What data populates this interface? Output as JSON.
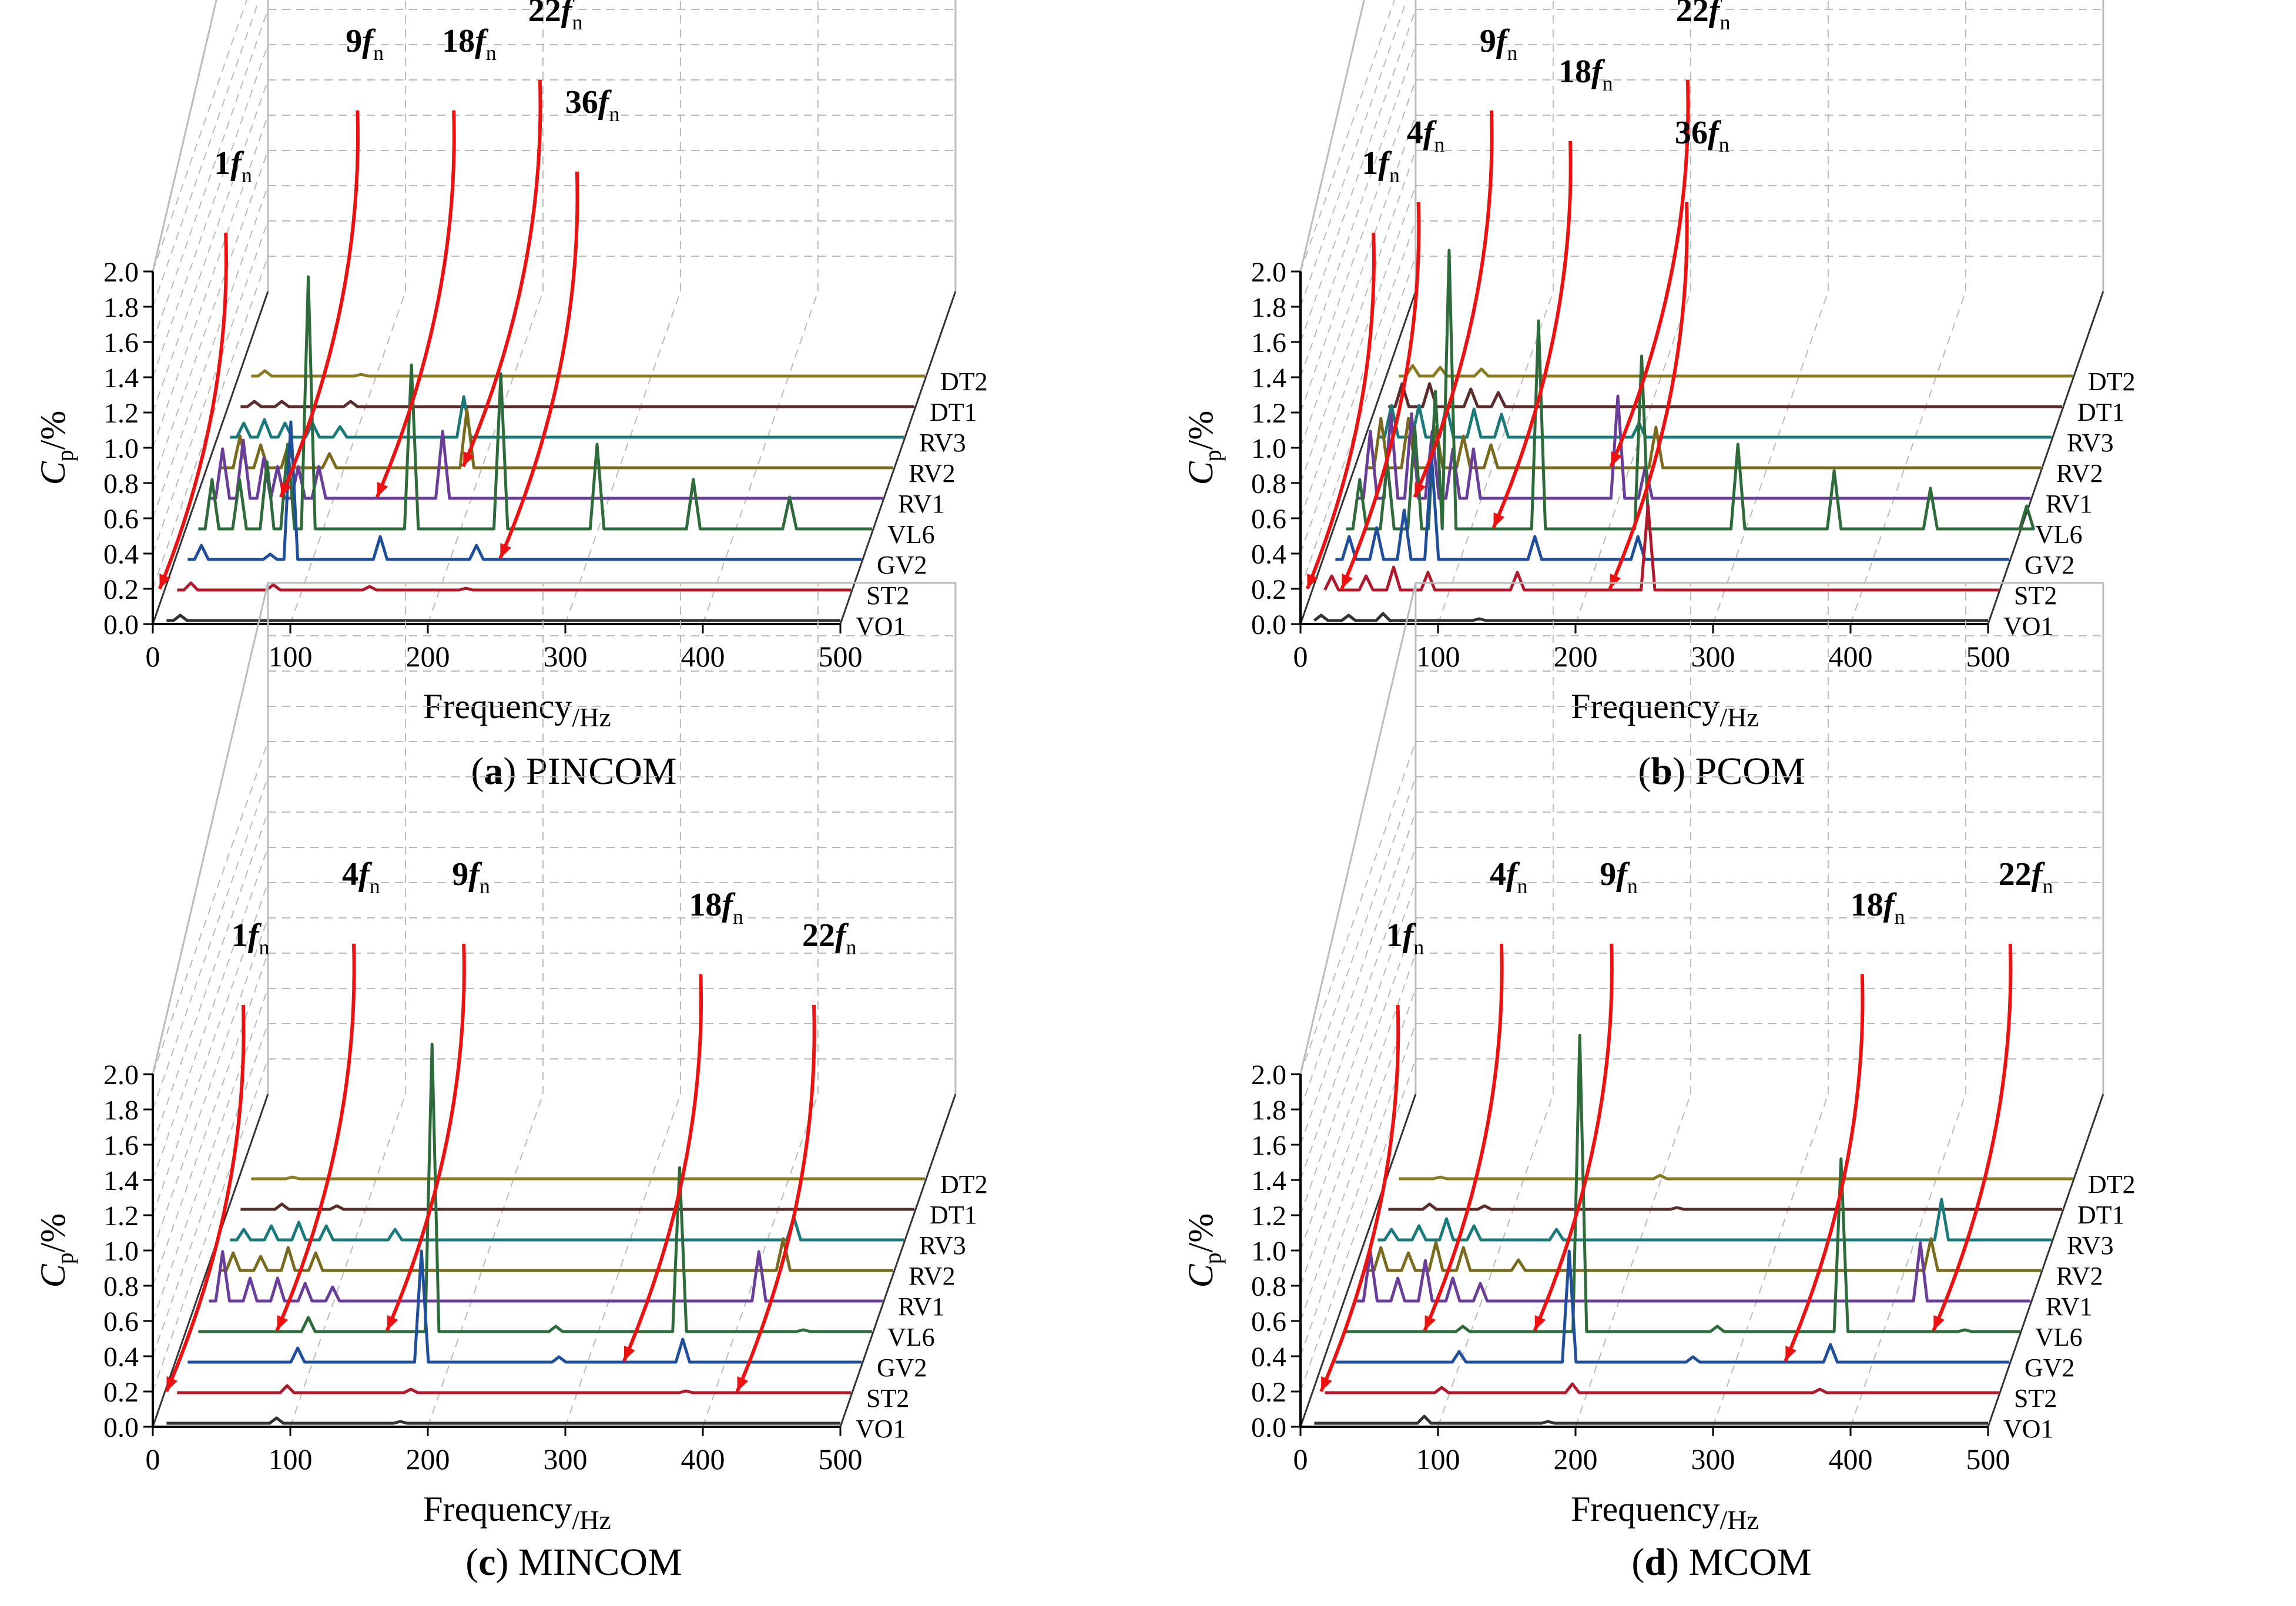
{
  "colors": {
    "VO1": "#333333",
    "ST2": "#b2182b",
    "GV2": "#1f4e9c",
    "VL6": "#2e6b3a",
    "RV1": "#6a3d9a",
    "RV2": "#7a6a1e",
    "RV3": "#1a7a7a",
    "DT1": "#5b2c2c",
    "DT2": "#8a7a20",
    "arrow": "#ee1111",
    "grid": "#bbbbbb"
  },
  "shared": {
    "xlabel": "Frequency",
    "xunit": "Hz",
    "ylabel_main": "C",
    "ylabel_sub": "p",
    "ylabel_unit": "/%",
    "x_ticks": [
      "0",
      "100",
      "200",
      "300",
      "400",
      "500"
    ],
    "y_ticks": [
      "0.0",
      "0.2",
      "0.4",
      "0.6",
      "0.8",
      "1.0",
      "1.2",
      "1.4",
      "1.6",
      "1.8",
      "2.0"
    ]
  },
  "chart_data": [
    {
      "type": "line",
      "caption_letter": "a",
      "caption_text": "PINCOM",
      "xlim": [
        0,
        500
      ],
      "ylim": [
        0,
        2.0
      ],
      "series": [
        {
          "name": "VO1",
          "peaks": [
            [
              20,
              0.05
            ],
            [
              60,
              0.02
            ],
            [
              180,
              0.02
            ]
          ]
        },
        {
          "name": "ST2",
          "peaks": [
            [
              20,
              0.06
            ],
            [
              80,
              0.05
            ],
            [
              150,
              0.04
            ],
            [
              220,
              0.03
            ]
          ]
        },
        {
          "name": "GV2",
          "peaks": [
            [
              20,
              0.1
            ],
            [
              70,
              0.05
            ],
            [
              85,
              0.8
            ],
            [
              150,
              0.15
            ],
            [
              220,
              0.1
            ],
            [
              290,
              0.02
            ]
          ]
        },
        {
          "name": "VL6",
          "peaks": [
            [
              20,
              0.3
            ],
            [
              40,
              0.3
            ],
            [
              60,
              0.4
            ],
            [
              75,
              0.5
            ],
            [
              90,
              1.45
            ],
            [
              165,
              0.95
            ],
            [
              230,
              0.9
            ],
            [
              300,
              0.5
            ],
            [
              370,
              0.3
            ],
            [
              440,
              0.2
            ]
          ]
        },
        {
          "name": "RV1",
          "peaks": [
            [
              20,
              0.3
            ],
            [
              35,
              0.35
            ],
            [
              50,
              0.25
            ],
            [
              60,
              0.2
            ],
            [
              75,
              0.2
            ],
            [
              90,
              0.2
            ],
            [
              180,
              0.4
            ]
          ]
        },
        {
          "name": "RV2",
          "peaks": [
            [
              25,
              0.2
            ],
            [
              40,
              0.15
            ],
            [
              60,
              0.15
            ],
            [
              90,
              0.1
            ],
            [
              190,
              0.35
            ]
          ]
        },
        {
          "name": "RV3",
          "peaks": [
            [
              20,
              0.1
            ],
            [
              35,
              0.12
            ],
            [
              50,
              0.1
            ],
            [
              70,
              0.1
            ],
            [
              90,
              0.08
            ],
            [
              180,
              0.25
            ]
          ]
        },
        {
          "name": "DT1",
          "peaks": [
            [
              20,
              0.05
            ],
            [
              40,
              0.05
            ],
            [
              90,
              0.05
            ]
          ]
        },
        {
          "name": "DT2",
          "peaks": [
            [
              20,
              0.05
            ],
            [
              90,
              0.03
            ]
          ]
        }
      ],
      "annotations": [
        {
          "text": "9",
          "sub": "n",
          "x": 95,
          "z": 7
        },
        {
          "text": "18",
          "sub": "n",
          "x": 165,
          "z": 7
        },
        {
          "text": "22",
          "sub": "n",
          "x": 220,
          "z": 8
        },
        {
          "text": "36",
          "sub": "n",
          "x": 270,
          "z": 5
        },
        {
          "text": "1",
          "sub": "n",
          "x": 30,
          "z": 3
        }
      ]
    },
    {
      "type": "line",
      "caption_letter": "b",
      "caption_text": "PCOM",
      "xlim": [
        0,
        500
      ],
      "ylim": [
        0,
        2.0
      ],
      "series": [
        {
          "name": "VO1",
          "peaks": [
            [
              15,
              0.05
            ],
            [
              35,
              0.05
            ],
            [
              60,
              0.06
            ],
            [
              130,
              0.03
            ],
            [
              250,
              0.02
            ]
          ]
        },
        {
          "name": "ST2",
          "peaks": [
            [
              15,
              0.1
            ],
            [
              40,
              0.1
            ],
            [
              60,
              0.15
            ],
            [
              85,
              0.12
            ],
            [
              150,
              0.12
            ],
            [
              245,
              0.5
            ],
            [
              320,
              0.02
            ]
          ]
        },
        {
          "name": "GV2",
          "peaks": [
            [
              20,
              0.15
            ],
            [
              40,
              0.2
            ],
            [
              60,
              0.3
            ],
            [
              80,
              0.6
            ],
            [
              155,
              0.15
            ],
            [
              230,
              0.15
            ],
            [
              310,
              0.02
            ]
          ]
        },
        {
          "name": "VL6",
          "peaks": [
            [
              20,
              0.3
            ],
            [
              40,
              0.4
            ],
            [
              60,
              0.6
            ],
            [
              75,
              0.8
            ],
            [
              85,
              1.6
            ],
            [
              150,
              1.2
            ],
            [
              225,
              1.0
            ],
            [
              295,
              0.5
            ],
            [
              365,
              0.35
            ],
            [
              435,
              0.25
            ],
            [
              505,
              0.15
            ]
          ]
        },
        {
          "name": "RV1",
          "peaks": [
            [
              20,
              0.4
            ],
            [
              35,
              0.5
            ],
            [
              50,
              0.5
            ],
            [
              65,
              0.4
            ],
            [
              80,
              0.3
            ],
            [
              95,
              0.3
            ],
            [
              200,
              0.6
            ],
            [
              220,
              0.2
            ]
          ]
        },
        {
          "name": "RV2",
          "peaks": [
            [
              20,
              0.3
            ],
            [
              40,
              0.3
            ],
            [
              60,
              0.25
            ],
            [
              80,
              0.2
            ],
            [
              100,
              0.15
            ],
            [
              220,
              0.25
            ]
          ]
        },
        {
          "name": "RV3",
          "peaks": [
            [
              20,
              0.2
            ],
            [
              40,
              0.2
            ],
            [
              60,
              0.2
            ],
            [
              80,
              0.18
            ],
            [
              100,
              0.15
            ],
            [
              200,
              0.1
            ]
          ]
        },
        {
          "name": "DT1",
          "peaks": [
            [
              20,
              0.15
            ],
            [
              40,
              0.15
            ],
            [
              70,
              0.12
            ],
            [
              90,
              0.1
            ]
          ]
        },
        {
          "name": "DT2",
          "peaks": [
            [
              20,
              0.08
            ],
            [
              40,
              0.07
            ],
            [
              70,
              0.06
            ]
          ]
        }
      ],
      "annotations": [
        {
          "text": "9",
          "sub": "n",
          "x": 85,
          "z": 7
        },
        {
          "text": "18",
          "sub": "n",
          "x": 150,
          "z": 6
        },
        {
          "text": "22",
          "sub": "n",
          "x": 220,
          "z": 8
        },
        {
          "text": "36",
          "sub": "n",
          "x": 250,
          "z": 4
        },
        {
          "text": "1",
          "sub": "n",
          "x": 30,
          "z": 3
        },
        {
          "text": "4",
          "sub": "n",
          "x": 55,
          "z": 4
        }
      ]
    },
    {
      "type": "line",
      "caption_letter": "c",
      "caption_text": "MINCOM",
      "xlim": [
        0,
        500
      ],
      "ylim": [
        0,
        2.0
      ],
      "series": [
        {
          "name": "VO1",
          "peaks": [
            [
              90,
              0.05
            ],
            [
              180,
              0.03
            ],
            [
              380,
              0.02
            ]
          ]
        },
        {
          "name": "ST2",
          "peaks": [
            [
              90,
              0.06
            ],
            [
              180,
              0.04
            ],
            [
              380,
              0.03
            ]
          ]
        },
        {
          "name": "GV2",
          "peaks": [
            [
              90,
              0.1
            ],
            [
              180,
              0.65
            ],
            [
              280,
              0.05
            ],
            [
              370,
              0.15
            ]
          ]
        },
        {
          "name": "VL6",
          "peaks": [
            [
              90,
              0.1
            ],
            [
              180,
              1.65
            ],
            [
              270,
              0.05
            ],
            [
              360,
              0.95
            ],
            [
              450,
              0.03
            ]
          ]
        },
        {
          "name": "RV1",
          "peaks": [
            [
              20,
              0.3
            ],
            [
              40,
              0.15
            ],
            [
              60,
              0.15
            ],
            [
              80,
              0.12
            ],
            [
              100,
              0.1
            ],
            [
              410,
              0.3
            ]
          ]
        },
        {
          "name": "RV2",
          "peaks": [
            [
              20,
              0.12
            ],
            [
              40,
              0.1
            ],
            [
              60,
              0.15
            ],
            [
              80,
              0.12
            ],
            [
              420,
              0.2
            ]
          ]
        },
        {
          "name": "RV3",
          "peaks": [
            [
              20,
              0.08
            ],
            [
              40,
              0.1
            ],
            [
              60,
              0.12
            ],
            [
              80,
              0.1
            ],
            [
              130,
              0.08
            ],
            [
              420,
              0.15
            ]
          ]
        },
        {
          "name": "DT1",
          "peaks": [
            [
              40,
              0.05
            ],
            [
              80,
              0.04
            ]
          ]
        },
        {
          "name": "DT2",
          "peaks": [
            [
              40,
              0.03
            ]
          ]
        }
      ],
      "annotations": [
        {
          "text": "9",
          "sub": "n",
          "x": 180,
          "z": 6
        },
        {
          "text": "18",
          "sub": "n",
          "x": 360,
          "z": 5
        },
        {
          "text": "22",
          "sub": "n",
          "x": 450,
          "z": 4
        },
        {
          "text": "4",
          "sub": "n",
          "x": 100,
          "z": 6
        },
        {
          "text": "1",
          "sub": "n",
          "x": 35,
          "z": 4
        }
      ]
    },
    {
      "type": "line",
      "caption_letter": "d",
      "caption_text": "MCOM",
      "xlim": [
        0,
        500
      ],
      "ylim": [
        0,
        2.0
      ],
      "series": [
        {
          "name": "VO1",
          "peaks": [
            [
              90,
              0.06
            ],
            [
              180,
              0.03
            ],
            [
              370,
              0.02
            ]
          ]
        },
        {
          "name": "ST2",
          "peaks": [
            [
              95,
              0.05
            ],
            [
              190,
              0.07
            ],
            [
              370,
              0.04
            ]
          ]
        },
        {
          "name": "GV2",
          "peaks": [
            [
              100,
              0.08
            ],
            [
              180,
              0.65
            ],
            [
              270,
              0.05
            ],
            [
              370,
              0.12
            ],
            [
              460,
              0.02
            ]
          ]
        },
        {
          "name": "VL6",
          "peaks": [
            [
              95,
              0.05
            ],
            [
              180,
              1.7
            ],
            [
              280,
              0.05
            ],
            [
              370,
              1.0
            ],
            [
              460,
              0.03
            ]
          ]
        },
        {
          "name": "RV1",
          "peaks": [
            [
              20,
              0.3
            ],
            [
              40,
              0.15
            ],
            [
              60,
              0.25
            ],
            [
              80,
              0.15
            ],
            [
              100,
              0.12
            ],
            [
              420,
              0.35
            ]
          ]
        },
        {
          "name": "RV2",
          "peaks": [
            [
              20,
              0.15
            ],
            [
              40,
              0.12
            ],
            [
              60,
              0.18
            ],
            [
              80,
              0.15
            ],
            [
              120,
              0.08
            ],
            [
              420,
              0.2
            ]
          ]
        },
        {
          "name": "RV3",
          "peaks": [
            [
              20,
              0.08
            ],
            [
              40,
              0.1
            ],
            [
              60,
              0.14
            ],
            [
              80,
              0.1
            ],
            [
              140,
              0.08
            ],
            [
              420,
              0.25
            ]
          ]
        },
        {
          "name": "DT1",
          "peaks": [
            [
              40,
              0.05
            ],
            [
              80,
              0.04
            ],
            [
              220,
              0.03
            ]
          ]
        },
        {
          "name": "DT2",
          "peaks": [
            [
              40,
              0.03
            ],
            [
              200,
              0.04
            ]
          ]
        }
      ],
      "annotations": [
        {
          "text": "9",
          "sub": "n",
          "x": 180,
          "z": 6
        },
        {
          "text": "18",
          "sub": "n",
          "x": 370,
          "z": 5
        },
        {
          "text": "22",
          "sub": "n",
          "x": 470,
          "z": 6
        },
        {
          "text": "4",
          "sub": "n",
          "x": 100,
          "z": 6
        },
        {
          "text": "1",
          "sub": "n",
          "x": 40,
          "z": 4
        }
      ]
    }
  ]
}
